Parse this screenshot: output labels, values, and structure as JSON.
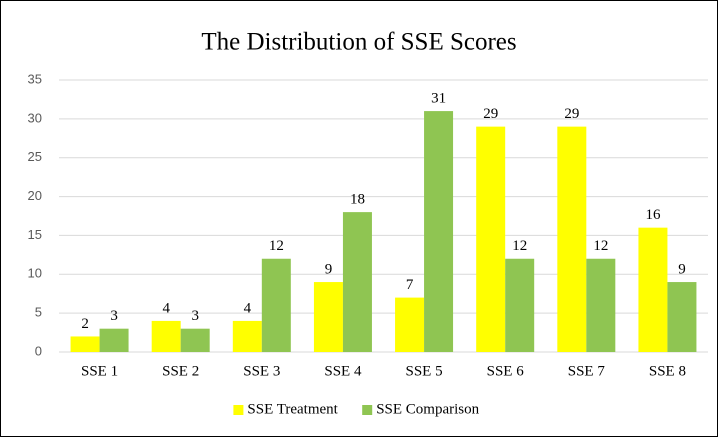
{
  "chart_data": {
    "type": "bar",
    "title": "The Distribution of SSE Scores",
    "categories": [
      "SSE 1",
      "SSE 2",
      "SSE 3",
      "SSE 4",
      "SSE 5",
      "SSE 6",
      "SSE 7",
      "SSE 8"
    ],
    "series": [
      {
        "name": "SSE Treatment",
        "color": "#ffff00",
        "values": [
          2,
          4,
          4,
          9,
          7,
          29,
          29,
          16
        ]
      },
      {
        "name": "SSE Comparison",
        "color": "#8fc552",
        "values": [
          3,
          3,
          12,
          18,
          31,
          12,
          12,
          9
        ]
      }
    ],
    "ylim": [
      0,
      35
    ],
    "yticks": [
      0,
      5,
      10,
      15,
      20,
      25,
      30,
      35
    ],
    "grid": true,
    "legend": "bottom"
  }
}
